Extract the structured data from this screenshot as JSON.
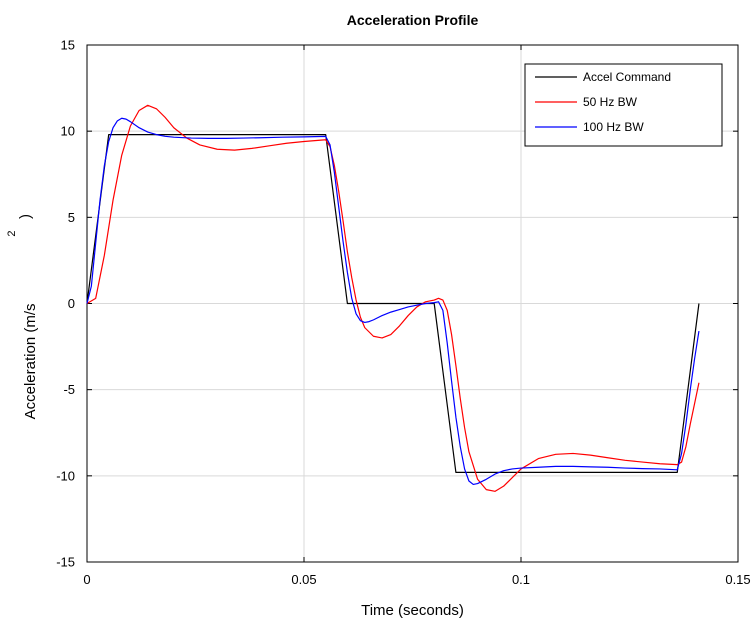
{
  "chart_data": {
    "type": "line",
    "title": "Acceleration Profile",
    "xlabel": "Time (seconds)",
    "ylabel": "Acceleration (m/s",
    "ylabel_superscript": "2",
    "ylabel_close": ")",
    "xlim": [
      0,
      0.15
    ],
    "ylim": [
      -15,
      15
    ],
    "xticks": [
      0,
      0.05,
      0.1,
      0.15
    ],
    "xtick_labels": [
      "0",
      "0.05",
      "0.1",
      "0.15"
    ],
    "yticks": [
      -15,
      -10,
      -5,
      0,
      5,
      10,
      15
    ],
    "ytick_labels": [
      "-15",
      "-10",
      "-5",
      "0",
      "5",
      "10",
      "15"
    ],
    "grid": true,
    "legend_position": "top-right",
    "series": [
      {
        "name": "Accel Command",
        "color": "#000000",
        "x": [
          0,
          0.005,
          0.055,
          0.06,
          0.08,
          0.085,
          0.136,
          0.141
        ],
        "y": [
          0,
          9.8,
          9.8,
          0,
          0,
          -9.8,
          -9.8,
          0
        ]
      },
      {
        "name": "50 Hz BW",
        "color": "#ff0000",
        "x": [
          0,
          0.002,
          0.004,
          0.006,
          0.008,
          0.01,
          0.012,
          0.014,
          0.016,
          0.018,
          0.02,
          0.023,
          0.026,
          0.03,
          0.034,
          0.038,
          0.042,
          0.046,
          0.05,
          0.055,
          0.056,
          0.057,
          0.058,
          0.059,
          0.06,
          0.061,
          0.062,
          0.063,
          0.064,
          0.066,
          0.068,
          0.07,
          0.072,
          0.074,
          0.076,
          0.078,
          0.08,
          0.081,
          0.082,
          0.083,
          0.084,
          0.085,
          0.086,
          0.087,
          0.088,
          0.09,
          0.092,
          0.094,
          0.096,
          0.098,
          0.1,
          0.104,
          0.108,
          0.112,
          0.116,
          0.12,
          0.124,
          0.128,
          0.132,
          0.136,
          0.137,
          0.138,
          0.139,
          0.14,
          0.141
        ],
        "y": [
          0,
          0.3,
          2.8,
          6.0,
          8.6,
          10.3,
          11.2,
          11.5,
          11.3,
          10.8,
          10.2,
          9.6,
          9.2,
          8.95,
          8.9,
          9.0,
          9.15,
          9.3,
          9.4,
          9.5,
          9.1,
          8.0,
          6.5,
          4.8,
          3.0,
          1.5,
          0.2,
          -0.8,
          -1.4,
          -1.9,
          -2.0,
          -1.8,
          -1.3,
          -0.7,
          -0.2,
          0.1,
          0.2,
          0.3,
          0.2,
          -0.4,
          -1.8,
          -3.6,
          -5.5,
          -7.2,
          -8.6,
          -10.2,
          -10.8,
          -10.9,
          -10.6,
          -10.1,
          -9.6,
          -9.0,
          -8.75,
          -8.7,
          -8.8,
          -8.95,
          -9.1,
          -9.2,
          -9.3,
          -9.35,
          -9.2,
          -8.3,
          -7.0,
          -5.8,
          -4.6
        ]
      },
      {
        "name": "100 Hz BW",
        "color": "#0000ff",
        "x": [
          0,
          0.001,
          0.002,
          0.003,
          0.004,
          0.005,
          0.006,
          0.007,
          0.008,
          0.009,
          0.01,
          0.012,
          0.014,
          0.016,
          0.018,
          0.02,
          0.024,
          0.028,
          0.032,
          0.036,
          0.04,
          0.045,
          0.05,
          0.055,
          0.056,
          0.057,
          0.058,
          0.059,
          0.06,
          0.061,
          0.062,
          0.063,
          0.064,
          0.065,
          0.066,
          0.068,
          0.07,
          0.072,
          0.074,
          0.076,
          0.078,
          0.08,
          0.081,
          0.082,
          0.083,
          0.084,
          0.085,
          0.086,
          0.087,
          0.088,
          0.089,
          0.09,
          0.092,
          0.094,
          0.096,
          0.098,
          0.1,
          0.104,
          0.108,
          0.112,
          0.116,
          0.12,
          0.124,
          0.128,
          0.132,
          0.136,
          0.137,
          0.138,
          0.139,
          0.14,
          0.141
        ],
        "y": [
          0,
          1.0,
          3.5,
          6.0,
          8.0,
          9.4,
          10.2,
          10.6,
          10.75,
          10.7,
          10.55,
          10.2,
          9.95,
          9.8,
          9.7,
          9.65,
          9.6,
          9.58,
          9.58,
          9.6,
          9.62,
          9.65,
          9.67,
          9.7,
          9.2,
          7.6,
          5.6,
          3.6,
          1.8,
          0.3,
          -0.6,
          -1.0,
          -1.1,
          -1.05,
          -0.95,
          -0.7,
          -0.5,
          -0.35,
          -0.2,
          -0.1,
          0,
          0.05,
          0.1,
          -0.4,
          -2.3,
          -4.5,
          -6.6,
          -8.3,
          -9.6,
          -10.3,
          -10.5,
          -10.45,
          -10.2,
          -9.9,
          -9.7,
          -9.6,
          -9.55,
          -9.5,
          -9.45,
          -9.45,
          -9.48,
          -9.5,
          -9.55,
          -9.58,
          -9.6,
          -9.65,
          -8.7,
          -7.0,
          -5.0,
          -3.2,
          -1.6
        ]
      }
    ]
  }
}
